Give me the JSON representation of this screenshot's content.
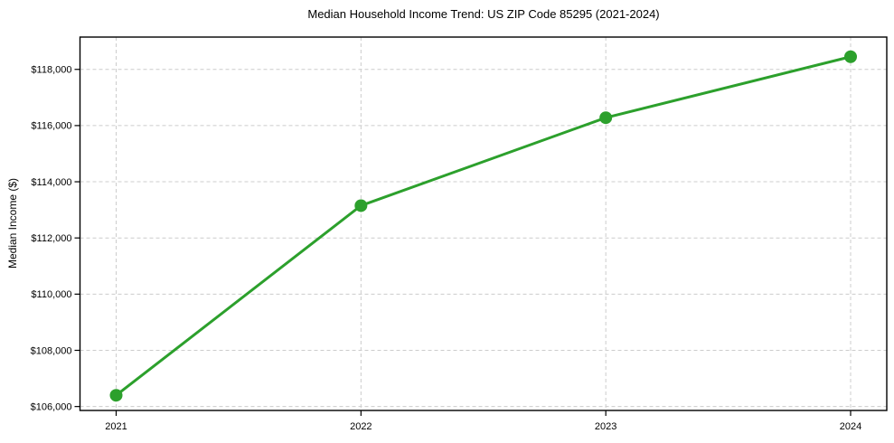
{
  "chart_data": {
    "type": "line",
    "title": "Median Household Income Trend: US ZIP Code 85295 (2021-2024)",
    "ylabel": "Median Income ($)",
    "xlabel": "",
    "categories": [
      "2021",
      "2022",
      "2023",
      "2024"
    ],
    "values": [
      106400,
      113150,
      116280,
      118450
    ],
    "ytick_values": [
      106000,
      108000,
      110000,
      112000,
      114000,
      116000,
      118000
    ],
    "ytick_labels": [
      "$106,000",
      "$108,000",
      "$110,000",
      "$112,000",
      "$114,000",
      "$116,000",
      "$118,000"
    ],
    "ylim": [
      105860,
      119150
    ],
    "grid": true,
    "grid_style": "dashed",
    "legend_position": "none",
    "line_color": "#2ca02c",
    "grid_color": "#cccccc",
    "spine_color": "#000000",
    "marker": "circle"
  }
}
